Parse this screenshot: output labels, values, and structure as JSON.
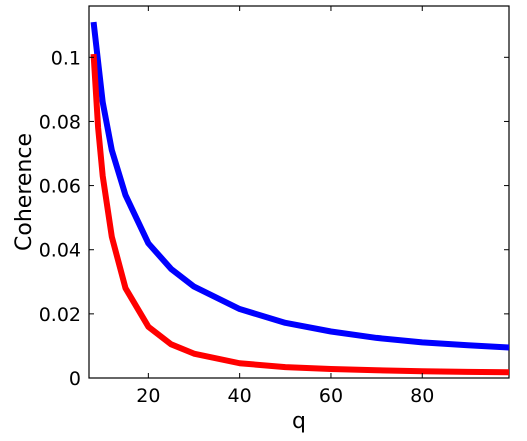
{
  "chart_data": {
    "type": "line",
    "title": "",
    "xlabel": "q",
    "ylabel": "Coherence",
    "xlim": [
      7,
      99
    ],
    "ylim": [
      0,
      0.116
    ],
    "grid": false,
    "x_ticks": [
      20,
      40,
      60,
      80
    ],
    "x_tick_labels": [
      "20",
      "40",
      "60",
      "80"
    ],
    "y_ticks": [
      0,
      0.02,
      0.04,
      0.06,
      0.08,
      0.1
    ],
    "y_tick_labels": [
      "0",
      "0.02",
      "0.04",
      "0.06",
      "0.08",
      "0.1"
    ],
    "series": [
      {
        "color": "#0000ff",
        "x": [
          8,
          10,
          12,
          15,
          20,
          25,
          30,
          40,
          50,
          60,
          70,
          80,
          90,
          99
        ],
        "y": [
          0.111,
          0.086,
          0.071,
          0.057,
          0.042,
          0.034,
          0.0285,
          0.0215,
          0.0172,
          0.0145,
          0.0125,
          0.0111,
          0.0102,
          0.0095
        ]
      },
      {
        "color": "#ff0000",
        "x": [
          8,
          9,
          10,
          12,
          15,
          20,
          25,
          30,
          40,
          50,
          60,
          70,
          80,
          90,
          99
        ],
        "y": [
          0.101,
          0.078,
          0.063,
          0.044,
          0.028,
          0.016,
          0.0105,
          0.0076,
          0.0046,
          0.0034,
          0.0028,
          0.0024,
          0.0021,
          0.0019,
          0.0018
        ]
      }
    ]
  }
}
